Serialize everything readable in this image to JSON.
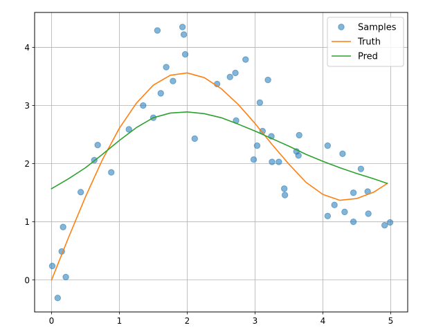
{
  "chart_data": {
    "type": "scatter+line",
    "title": "",
    "xlabel": "",
    "ylabel": "",
    "xlim": [
      -0.25,
      5.25
    ],
    "ylim": [
      -0.55,
      4.6
    ],
    "grid": true,
    "legend_position": "top-right",
    "x_ticks": [
      0,
      1,
      2,
      3,
      4,
      5
    ],
    "x_tick_labels": [
      "0",
      "1",
      "2",
      "3",
      "4",
      "5"
    ],
    "y_ticks": [
      0,
      1,
      2,
      3,
      4
    ],
    "y_tick_labels": [
      "0",
      "1",
      "2",
      "3",
      "4"
    ],
    "series": [
      {
        "name": "Samples",
        "kind": "scatter",
        "color": "#1f77b4",
        "alpha": 0.55,
        "points": [
          [
            0.01,
            0.24
          ],
          [
            0.09,
            -0.31
          ],
          [
            0.15,
            0.49
          ],
          [
            0.17,
            0.91
          ],
          [
            0.21,
            0.05
          ],
          [
            0.43,
            1.51
          ],
          [
            0.63,
            2.06
          ],
          [
            0.68,
            2.32
          ],
          [
            0.88,
            1.85
          ],
          [
            1.14,
            2.59
          ],
          [
            1.35,
            3.0
          ],
          [
            1.5,
            2.79
          ],
          [
            1.56,
            4.29
          ],
          [
            1.61,
            3.21
          ],
          [
            1.69,
            3.66
          ],
          [
            1.79,
            3.42
          ],
          [
            1.93,
            4.35
          ],
          [
            1.95,
            4.22
          ],
          [
            1.97,
            3.88
          ],
          [
            2.11,
            2.43
          ],
          [
            2.44,
            3.37
          ],
          [
            2.63,
            3.49
          ],
          [
            2.71,
            3.56
          ],
          [
            2.72,
            2.74
          ],
          [
            2.86,
            3.79
          ],
          [
            2.98,
            2.07
          ],
          [
            3.03,
            2.31
          ],
          [
            3.07,
            3.05
          ],
          [
            3.11,
            2.56
          ],
          [
            3.19,
            3.44
          ],
          [
            3.24,
            2.47
          ],
          [
            3.25,
            2.03
          ],
          [
            3.35,
            2.03
          ],
          [
            3.43,
            1.57
          ],
          [
            3.44,
            1.46
          ],
          [
            3.61,
            2.21
          ],
          [
            3.64,
            2.14
          ],
          [
            3.65,
            2.49
          ],
          [
            4.07,
            2.31
          ],
          [
            4.07,
            1.1
          ],
          [
            4.17,
            1.29
          ],
          [
            4.29,
            2.17
          ],
          [
            4.32,
            1.17
          ],
          [
            4.45,
            1.0
          ],
          [
            4.45,
            1.5
          ],
          [
            4.56,
            1.91
          ],
          [
            4.66,
            1.52
          ],
          [
            4.67,
            1.14
          ],
          [
            4.91,
            0.94
          ],
          [
            4.99,
            0.99
          ]
        ]
      },
      {
        "name": "Truth",
        "kind": "line",
        "color": "#ff7f0e",
        "points": [
          [
            0.0,
            0.0
          ],
          [
            0.25,
            0.73
          ],
          [
            0.5,
            1.43
          ],
          [
            0.75,
            2.07
          ],
          [
            1.0,
            2.61
          ],
          [
            1.25,
            3.04
          ],
          [
            1.5,
            3.35
          ],
          [
            1.75,
            3.52
          ],
          [
            2.0,
            3.56
          ],
          [
            2.25,
            3.48
          ],
          [
            2.5,
            3.29
          ],
          [
            2.75,
            3.02
          ],
          [
            3.0,
            2.69
          ],
          [
            3.25,
            2.33
          ],
          [
            3.5,
            1.99
          ],
          [
            3.75,
            1.68
          ],
          [
            4.0,
            1.47
          ],
          [
            4.25,
            1.37
          ],
          [
            4.5,
            1.4
          ],
          [
            4.75,
            1.51
          ],
          [
            4.95,
            1.66
          ]
        ]
      },
      {
        "name": "Pred",
        "kind": "line",
        "color": "#2ca02c",
        "points": [
          [
            0.0,
            1.57
          ],
          [
            0.25,
            1.74
          ],
          [
            0.5,
            1.93
          ],
          [
            0.75,
            2.16
          ],
          [
            1.0,
            2.4
          ],
          [
            1.25,
            2.62
          ],
          [
            1.5,
            2.79
          ],
          [
            1.75,
            2.87
          ],
          [
            2.0,
            2.89
          ],
          [
            2.25,
            2.86
          ],
          [
            2.5,
            2.79
          ],
          [
            2.75,
            2.68
          ],
          [
            3.0,
            2.56
          ],
          [
            3.25,
            2.43
          ],
          [
            3.5,
            2.3
          ],
          [
            3.75,
            2.16
          ],
          [
            4.0,
            2.04
          ],
          [
            4.25,
            1.93
          ],
          [
            4.5,
            1.83
          ],
          [
            4.75,
            1.74
          ],
          [
            4.95,
            1.66
          ]
        ]
      }
    ]
  }
}
